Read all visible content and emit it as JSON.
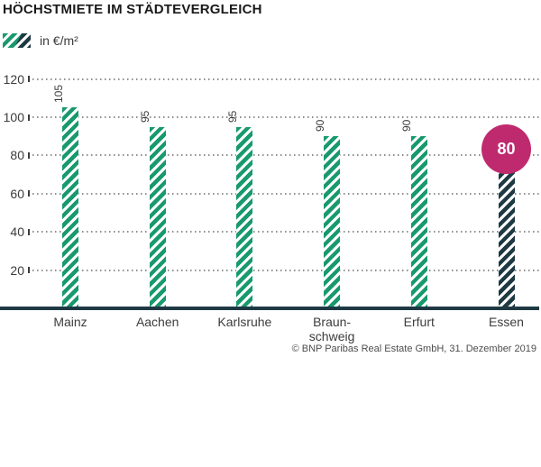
{
  "page": {
    "title": "HÖCHSTMIETE IM STÄDTEVERGLEICH",
    "footer": "© BNP Paribas Real Estate GmbH, 31. Dezember 2019"
  },
  "legend": {
    "label": "in €/m²"
  },
  "colors": {
    "green": "#18996e",
    "dark": "#1e3943",
    "magenta": "#bf2a6e",
    "grid": "#8e8e8e",
    "text_dark": "#1a1a1a",
    "text_label": "#3c3c3c"
  },
  "chart_data": {
    "type": "bar",
    "title": "HÖCHSTMIETE IM STÄDTEVERGLEICH",
    "ylabel": "in €/m²",
    "categories": [
      "Mainz",
      "Aachen",
      "Karlsruhe",
      "Braunschweig",
      "Erfurt",
      "Essen"
    ],
    "category_display": [
      "Mainz",
      "Aachen",
      "Karlsruhe",
      "Braun-\nschweig",
      "Erfurt",
      "Essen"
    ],
    "values": [
      105,
      95,
      95,
      90,
      90,
      80
    ],
    "value_labels": [
      "105",
      "95",
      "95",
      "90",
      "90",
      "80"
    ],
    "bar_styles": [
      "green",
      "green",
      "green",
      "green",
      "green",
      "dark"
    ],
    "highlight": {
      "index": 5,
      "label": "80",
      "shape": "circle",
      "color": "#bf2a6e"
    },
    "yticks": [
      20,
      40,
      60,
      80,
      100,
      120
    ],
    "ylim": [
      0,
      128
    ],
    "grid": "dotted-horizontal",
    "legend_position": "top-left",
    "value_label_style": "rotated-90-above-bars"
  }
}
